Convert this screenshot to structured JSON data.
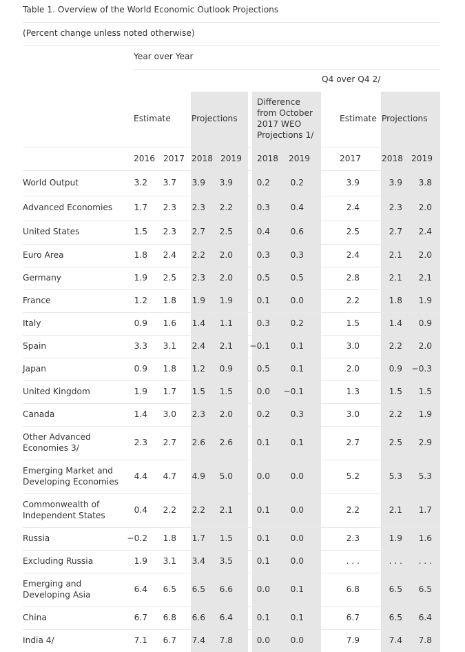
{
  "title": "Table 1. Overview of the World Economic Outlook Projections",
  "subtitle": "(Percent change unless noted otherwise)",
  "headers": {
    "yoy": "Year over Year",
    "q4": "Q4  over Q4 2/",
    "estimate": "Estimate",
    "projections": "Projections",
    "difference": "Difference from October 2017 WEO Projections 1/",
    "q4_estimate": "Estimate",
    "q4_projections": "Projections"
  },
  "years": [
    "2016",
    "2017",
    "2018",
    "2019",
    "2018",
    "2019",
    "2017",
    "2018",
    "2019"
  ],
  "rows": [
    {
      "label": "World Output",
      "values": [
        "3.2",
        "3.7",
        "3.9",
        "3.9",
        "0.2",
        "0.2",
        "3.9",
        "3.9",
        "3.8"
      ]
    },
    {
      "label": "Advanced Economies",
      "values": [
        "1.7",
        "2.3",
        "2.3",
        "2.2",
        "0.3",
        "0.4",
        "2.4",
        "2.3",
        "2.0"
      ]
    },
    {
      "label": "United States",
      "values": [
        "1.5",
        "2.3",
        "2.7",
        "2.5",
        "0.4",
        "0.6",
        "2.5",
        "2.7",
        "2.4"
      ]
    },
    {
      "label": "Euro Area",
      "values": [
        "1.8",
        "2.4",
        "2.2",
        "2.0",
        "0.3",
        "0.3",
        "2.4",
        "2.1",
        "2.0"
      ]
    },
    {
      "label": "Germany",
      "values": [
        "1.9",
        "2.5",
        "2.3",
        "2.0",
        "0.5",
        "0.5",
        "2.8",
        "2.1",
        "2.1"
      ]
    },
    {
      "label": "France",
      "values": [
        "1.2",
        "1.8",
        "1.9",
        "1.9",
        "0.1",
        "0.0",
        "2.2",
        "1.8",
        "1.9"
      ]
    },
    {
      "label": "Italy",
      "values": [
        "0.9",
        "1.6",
        "1.4",
        "1.1",
        "0.3",
        "0.2",
        "1.5",
        "1.4",
        "0.9"
      ]
    },
    {
      "label": "Spain",
      "values": [
        "3.3",
        "3.1",
        "2.4",
        "2.1",
        "−0.1",
        "0.1",
        "3.0",
        "2.2",
        "2.0"
      ]
    },
    {
      "label": "Japan",
      "values": [
        "0.9",
        "1.8",
        "1.2",
        "0.9",
        "0.5",
        "0.1",
        "2.0",
        "0.9",
        "−0.3"
      ]
    },
    {
      "label": "United Kingdom",
      "values": [
        "1.9",
        "1.7",
        "1.5",
        "1.5",
        "0.0",
        "−0.1",
        "1.3",
        "1.5",
        "1.5"
      ]
    },
    {
      "label": "Canada",
      "values": [
        "1.4",
        "3.0",
        "2.3",
        "2.0",
        "0.2",
        "0.3",
        "3.0",
        "2.2",
        "1.9"
      ]
    },
    {
      "label": "Other Advanced Economies 3/",
      "values": [
        "2.3",
        "2.7",
        "2.6",
        "2.6",
        "0.1",
        "0.1",
        "2.7",
        "2.5",
        "2.9"
      ]
    },
    {
      "label": "Emerging Market and Developing Economies",
      "values": [
        "4.4",
        "4.7",
        "4.9",
        "5.0",
        "0.0",
        "0.0",
        "5.2",
        "5.3",
        "5.3"
      ]
    },
    {
      "label": "Commonwealth of Independent States",
      "values": [
        "0.4",
        "2.2",
        "2.2",
        "2.1",
        "0.1",
        "0.0",
        "2.2",
        "2.1",
        "1.7"
      ]
    },
    {
      "label": "Russia",
      "values": [
        "−0.2",
        "1.8",
        "1.7",
        "1.5",
        "0.1",
        "0.0",
        "2.3",
        "1.9",
        "1.6"
      ]
    },
    {
      "label": "Excluding Russia",
      "values": [
        "1.9",
        "3.1",
        "3.4",
        "3.5",
        "0.1",
        "0.0",
        ". . .",
        ". . .",
        ". . ."
      ]
    },
    {
      "label": "Emerging and Developing Asia",
      "values": [
        "6.4",
        "6.5",
        "6.5",
        "6.6",
        "0.0",
        "0.1",
        "6.8",
        "6.5",
        "6.5"
      ]
    },
    {
      "label": "China",
      "values": [
        "6.7",
        "6.8",
        "6.6",
        "6.4",
        "0.1",
        "0.1",
        "6.7",
        "6.5",
        "6.4"
      ]
    },
    {
      "label": "India 4/",
      "values": [
        "7.1",
        "6.7",
        "7.4",
        "7.8",
        "0.0",
        "0.0",
        "7.9",
        "7.4",
        "7.8"
      ]
    }
  ]
}
